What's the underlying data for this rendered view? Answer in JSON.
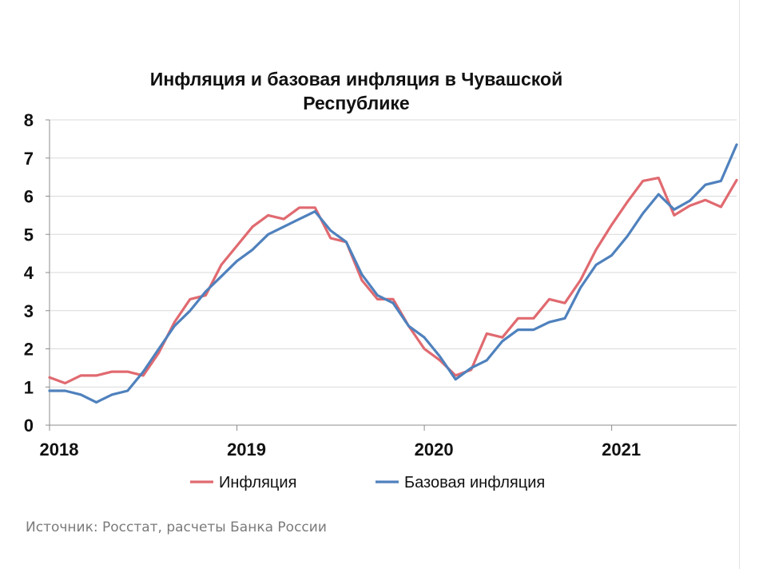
{
  "chart_data": {
    "type": "line",
    "title": [
      "Инфляция и базовая инфляция в Чувашской",
      "Республике"
    ],
    "xlabel": "",
    "ylabel": "",
    "ylim": [
      0,
      8
    ],
    "yticks": [
      0,
      1,
      2,
      3,
      4,
      5,
      6,
      7,
      8
    ],
    "xlim": [
      2018,
      2021.6667
    ],
    "xticks": [
      2018,
      2019,
      2020,
      2021
    ],
    "xtick_labels": [
      "2018",
      "2019",
      "2020",
      "2021"
    ],
    "grid": "horizontal",
    "legend": "bottom",
    "series": [
      {
        "name": "Инфляция",
        "color": "#e06a70",
        "x": [
          2018.0,
          2018.0833,
          2018.1667,
          2018.25,
          2018.3333,
          2018.4167,
          2018.5,
          2018.5833,
          2018.6667,
          2018.75,
          2018.8333,
          2018.9167,
          2019.0,
          2019.0833,
          2019.1667,
          2019.25,
          2019.3333,
          2019.4167,
          2019.5,
          2019.5833,
          2019.6667,
          2019.75,
          2019.8333,
          2019.9167,
          2020.0,
          2020.0833,
          2020.1667,
          2020.25,
          2020.3333,
          2020.4167,
          2020.5,
          2020.5833,
          2020.6667,
          2020.75,
          2020.8333,
          2020.9167,
          2021.0,
          2021.0833,
          2021.1667,
          2021.25,
          2021.3333,
          2021.4167,
          2021.5,
          2021.5833,
          2021.6667
        ],
        "values": [
          1.25,
          1.1,
          1.3,
          1.3,
          1.4,
          1.4,
          1.3,
          1.9,
          2.7,
          3.3,
          3.4,
          4.2,
          4.7,
          5.2,
          5.5,
          5.4,
          5.7,
          5.7,
          4.9,
          4.8,
          3.8,
          3.3,
          3.3,
          2.6,
          2.0,
          1.7,
          1.3,
          1.45,
          2.4,
          2.3,
          2.8,
          2.8,
          3.3,
          3.2,
          3.8,
          4.6,
          5.25,
          5.85,
          6.4,
          6.48,
          5.5,
          5.75,
          5.9,
          5.72,
          6.42
        ]
      },
      {
        "name": "Базовая инфляция",
        "color": "#4f81bd",
        "x": [
          2018.0,
          2018.0833,
          2018.1667,
          2018.25,
          2018.3333,
          2018.4167,
          2018.5,
          2018.5833,
          2018.6667,
          2018.75,
          2018.8333,
          2018.9167,
          2019.0,
          2019.0833,
          2019.1667,
          2019.25,
          2019.3333,
          2019.4167,
          2019.5,
          2019.5833,
          2019.6667,
          2019.75,
          2019.8333,
          2019.9167,
          2020.0,
          2020.0833,
          2020.1667,
          2020.25,
          2020.3333,
          2020.4167,
          2020.5,
          2020.5833,
          2020.6667,
          2020.75,
          2020.8333,
          2020.9167,
          2021.0,
          2021.0833,
          2021.1667,
          2021.25,
          2021.3333,
          2021.4167,
          2021.5,
          2021.5833,
          2021.6667
        ],
        "values": [
          0.9,
          0.9,
          0.8,
          0.6,
          0.8,
          0.9,
          1.4,
          2.0,
          2.6,
          3.0,
          3.5,
          3.9,
          4.3,
          4.6,
          5.0,
          5.2,
          5.4,
          5.6,
          5.1,
          4.8,
          3.95,
          3.4,
          3.2,
          2.6,
          2.3,
          1.8,
          1.2,
          1.5,
          1.7,
          2.2,
          2.5,
          2.5,
          2.7,
          2.8,
          3.6,
          4.2,
          4.45,
          4.95,
          5.55,
          6.05,
          5.65,
          5.88,
          6.3,
          6.4,
          7.35
        ]
      }
    ]
  },
  "source_text": "Источник: Росстат, расчеты Банка России"
}
